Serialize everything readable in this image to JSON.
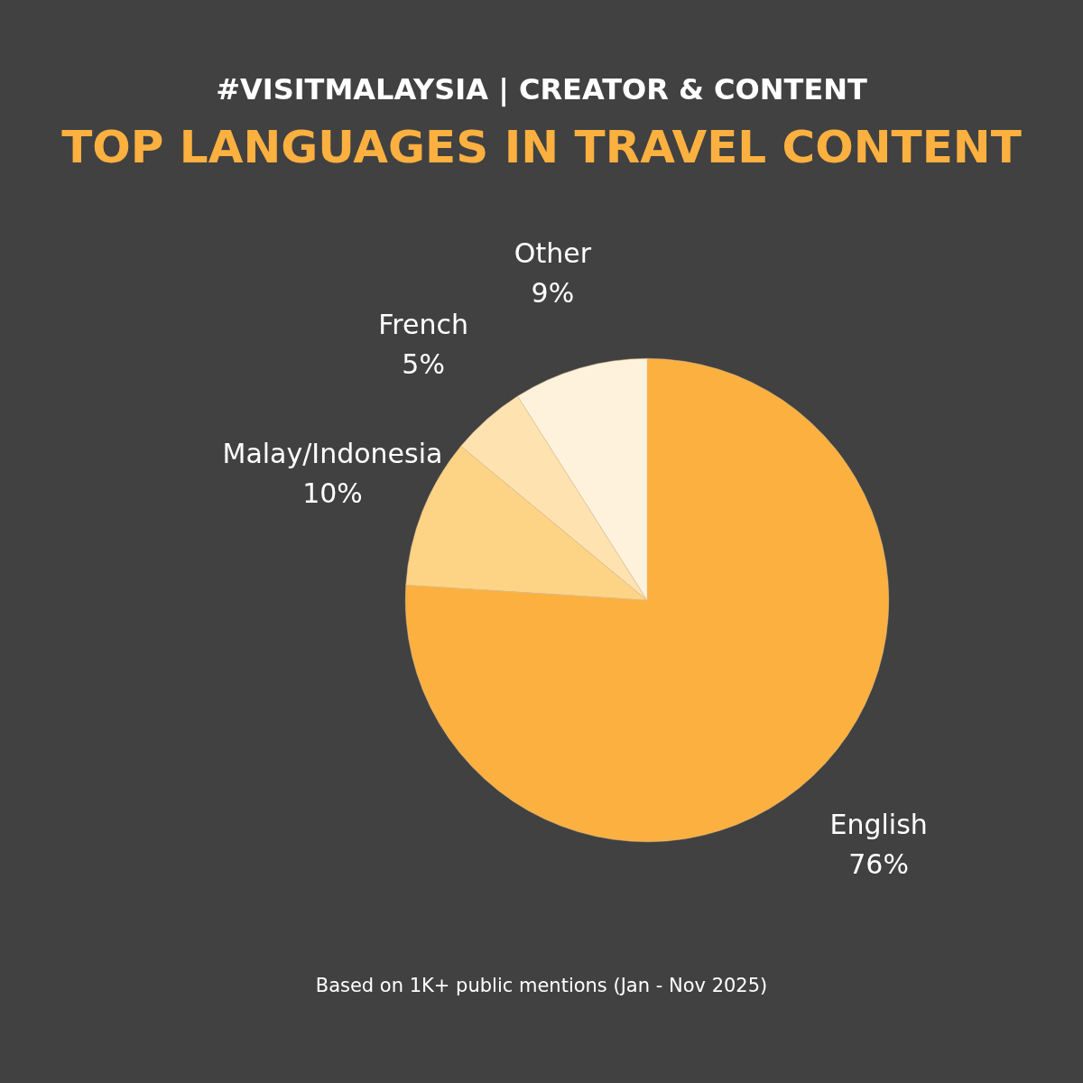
{
  "chart_data": {
    "type": "pie",
    "subtitle": "#VISITMALAYSIA | CREATOR & CONTENT",
    "title": "TOP LANGUAGES IN TRAVEL CONTENT",
    "categories": [
      "English",
      "Malay/Indonesia",
      "French",
      "Other"
    ],
    "values": [
      76,
      10,
      5,
      9
    ],
    "value_labels": [
      "76%",
      "10%",
      "5%",
      "9%"
    ],
    "colors": [
      "#fbb040",
      "#fdd385",
      "#fee3b0",
      "#fff2dc"
    ],
    "annotations": [
      "Based on 1K+ public mentions (Jan - Nov 2025)"
    ]
  }
}
